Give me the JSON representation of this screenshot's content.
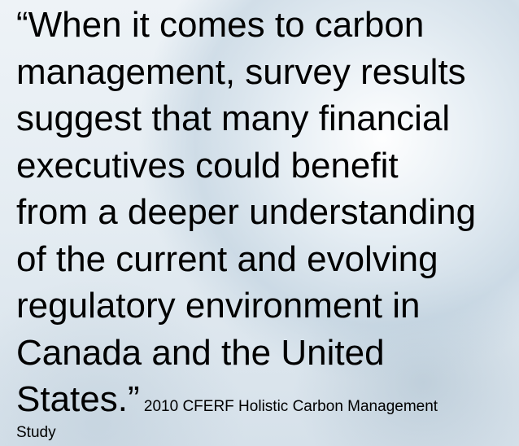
{
  "quote": {
    "lines": [
      "“When it comes to carbon",
      "management, survey results",
      "suggest that many financial",
      "executives could benefit",
      "from a deeper understanding",
      "of the current and evolving",
      "regulatory environment in",
      "Canada and the United",
      "States.”"
    ],
    "attribution": "2010 CFERF Holistic Carbon Management Study"
  }
}
